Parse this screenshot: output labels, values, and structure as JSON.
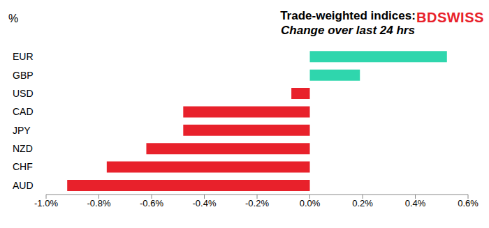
{
  "chart_data": {
    "type": "bar",
    "orientation": "horizontal",
    "title": "Trade-weighted indices:",
    "subtitle": "Change over last 24 hrs",
    "xlabel": "%",
    "annotations": [
      "BDSWISS"
    ],
    "categories": [
      "EUR",
      "GBP",
      "USD",
      "CAD",
      "JPY",
      "NZD",
      "CHF",
      "AUD"
    ],
    "values": [
      0.52,
      0.19,
      -0.07,
      -0.48,
      -0.48,
      -0.62,
      -0.77,
      -0.92
    ],
    "colors": [
      "#2fd6ad",
      "#2fd6ad",
      "#e8212b",
      "#e8212b",
      "#e8212b",
      "#e8212b",
      "#e8212b",
      "#e8212b"
    ],
    "xlim": [
      -1,
      0.6
    ],
    "xticks": [
      {
        "value": -1,
        "label": "-1.0%"
      },
      {
        "value": -0.8,
        "label": "-0.8%"
      },
      {
        "value": -0.6,
        "label": "-0.6%"
      },
      {
        "value": -0.4,
        "label": "-0.4%"
      },
      {
        "value": -0.2,
        "label": "-0.2%"
      },
      {
        "value": 0,
        "label": "0.0%"
      },
      {
        "value": 0.2,
        "label": "0.2%"
      },
      {
        "value": 0.4,
        "label": "0.4%"
      },
      {
        "value": 0.6,
        "label": "0.6%"
      }
    ],
    "grid": false,
    "data_labels": false
  }
}
